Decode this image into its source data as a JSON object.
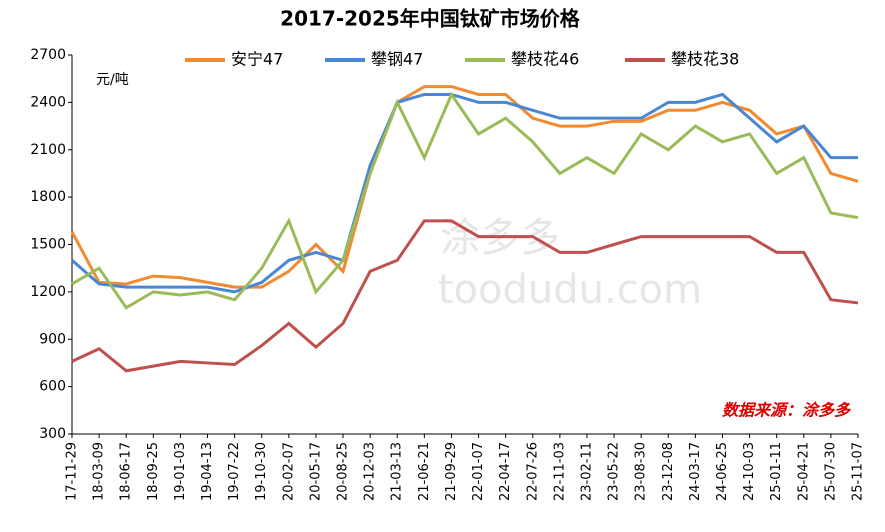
{
  "chart_data": {
    "type": "line",
    "title": "2017-2025年中国钛矿市场价格",
    "y_unit": "元/吨",
    "source": "数据来源：涂多多",
    "watermark": [
      "涂多多",
      "toodudu.com"
    ],
    "categories": [
      "17-11-29",
      "18-03-09",
      "18-06-17",
      "18-09-25",
      "19-01-03",
      "19-04-13",
      "19-07-22",
      "19-10-30",
      "20-02-07",
      "20-05-17",
      "20-08-25",
      "20-12-03",
      "21-03-13",
      "21-06-21",
      "21-09-29",
      "22-01-07",
      "22-04-17",
      "22-07-26",
      "22-11-03",
      "23-02-11",
      "23-05-22",
      "23-08-30",
      "23-12-08",
      "24-03-17",
      "24-06-25",
      "24-10-03",
      "25-01-11",
      "25-04-21",
      "25-07-30",
      "25-11-07"
    ],
    "series": [
      {
        "name": "安宁47",
        "color": "#f28a30",
        "values": [
          1580,
          1260,
          1250,
          1300,
          1290,
          1260,
          1230,
          1230,
          1330,
          1500,
          1330,
          1950,
          2400,
          2500,
          2500,
          2450,
          2450,
          2300,
          2250,
          2250,
          2280,
          2280,
          2350,
          2350,
          2400,
          2350,
          2200,
          2250,
          1950,
          1900
        ]
      },
      {
        "name": "攀钢47",
        "color": "#4a86d4",
        "values": [
          1400,
          1250,
          1230,
          1230,
          1230,
          1230,
          1200,
          1260,
          1400,
          1450,
          1400,
          2000,
          2400,
          2450,
          2450,
          2400,
          2400,
          2350,
          2300,
          2300,
          2300,
          2300,
          2400,
          2400,
          2450,
          2300,
          2150,
          2250,
          2050,
          2050
        ]
      },
      {
        "name": "攀枝花46",
        "color": "#9bbb59",
        "values": [
          1250,
          1350,
          1100,
          1200,
          1180,
          1200,
          1150,
          1350,
          1650,
          1200,
          1400,
          1950,
          2400,
          2050,
          2450,
          2200,
          2300,
          2150,
          1950,
          2050,
          1950,
          2200,
          2100,
          2250,
          2150,
          2200,
          1950,
          2050,
          1700,
          1670
        ]
      },
      {
        "name": "攀枝花38",
        "color": "#c0504d",
        "values": [
          760,
          840,
          700,
          730,
          760,
          750,
          740,
          860,
          1000,
          850,
          1000,
          1330,
          1400,
          1650,
          1650,
          1550,
          1550,
          1550,
          1450,
          1450,
          1500,
          1550,
          1550,
          1550,
          1550,
          1550,
          1450,
          1450,
          1150,
          1130
        ]
      }
    ],
    "ylim": [
      300,
      2700
    ],
    "yticks": [
      300,
      600,
      900,
      1200,
      1500,
      1800,
      2100,
      2400,
      2700
    ]
  }
}
